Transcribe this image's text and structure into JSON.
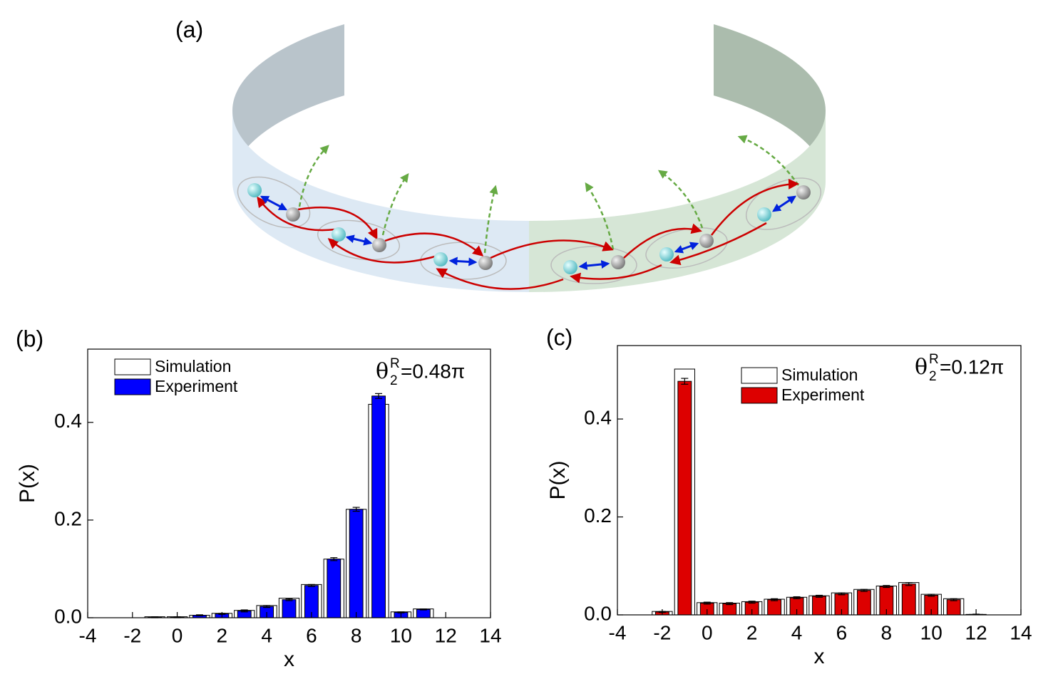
{
  "panel_a": "(a)",
  "chart_data": [
    {
      "type": "bar",
      "panel": "(b)",
      "xlabel": "x",
      "ylabel": "P(x)",
      "annotation": {
        "symbol": "θ",
        "sub": "2",
        "sup": "R",
        "text": "=0.48π"
      },
      "x": [
        -1,
        0,
        1,
        2,
        3,
        4,
        5,
        6,
        7,
        8,
        9,
        10,
        11
      ],
      "series": [
        {
          "name": "Simulation",
          "color": "#ffffff",
          "values": [
            0.002,
            0.002,
            0.005,
            0.009,
            0.015,
            0.025,
            0.04,
            0.068,
            0.12,
            0.222,
            0.437,
            0.012,
            0.018
          ]
        },
        {
          "name": "Experiment",
          "color": "#0000ff",
          "values": [
            0.001,
            0.001,
            0.005,
            0.008,
            0.014,
            0.023,
            0.037,
            0.066,
            0.12,
            0.222,
            0.454,
            0.011,
            0.017
          ],
          "errors": [
            0.001,
            0.001,
            0.001,
            0.001,
            0.002,
            0.002,
            0.002,
            0.002,
            0.003,
            0.004,
            0.005,
            0.001,
            0.001
          ]
        }
      ],
      "xlim": [
        -4,
        14
      ],
      "xticks": [
        -4,
        -2,
        0,
        2,
        4,
        6,
        8,
        10,
        12,
        14
      ],
      "ylim": [
        0,
        0.55
      ],
      "yticks": [
        {
          "value": 0,
          "label": "0.0"
        },
        0.2,
        0.4
      ]
    },
    {
      "type": "bar",
      "panel": "(c)",
      "xlabel": "x",
      "ylabel": "P(x)",
      "annotation": {
        "symbol": "θ",
        "sub": "2",
        "sup": "R",
        "text": "=0.12π"
      },
      "x": [
        -2,
        -1,
        0,
        1,
        2,
        3,
        4,
        5,
        6,
        7,
        8,
        9,
        10,
        11,
        12
      ],
      "series": [
        {
          "name": "Simulation",
          "color": "#ffffff",
          "values": [
            0.007,
            0.502,
            0.025,
            0.024,
            0.027,
            0.032,
            0.036,
            0.039,
            0.045,
            0.052,
            0.059,
            0.066,
            0.042,
            0.033,
            0.001
          ]
        },
        {
          "name": "Experiment",
          "color": "#dd0000",
          "values": [
            0.006,
            0.477,
            0.024,
            0.023,
            0.026,
            0.031,
            0.035,
            0.038,
            0.043,
            0.05,
            0.058,
            0.063,
            0.04,
            0.031,
            0.001
          ],
          "errors": [
            0.001,
            0.006,
            0.002,
            0.002,
            0.002,
            0.002,
            0.002,
            0.002,
            0.002,
            0.002,
            0.002,
            0.003,
            0.002,
            0.002,
            0.0005
          ]
        }
      ],
      "xlim": [
        -4,
        14
      ],
      "xticks": [
        -4,
        -2,
        0,
        2,
        4,
        6,
        8,
        10,
        12,
        14
      ],
      "ylim": [
        0,
        0.55
      ],
      "yticks": [
        {
          "value": 0,
          "label": "0.0"
        },
        0.2,
        0.4
      ]
    }
  ]
}
